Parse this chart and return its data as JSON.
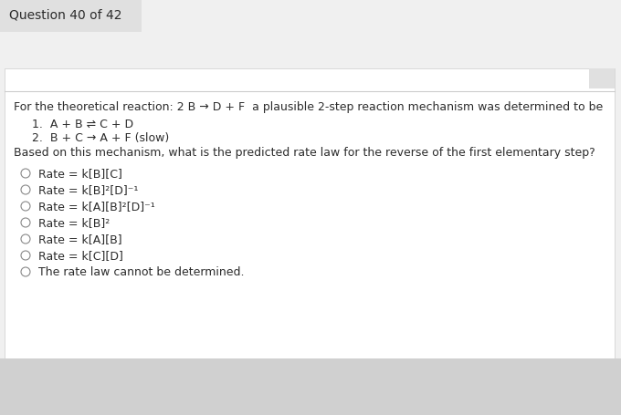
{
  "title": "Question 40 of 42",
  "bg_color": "#f0f0f0",
  "panel_color": "#ffffff",
  "header_bg": "#e0e0e0",
  "intro_line": "For the theoretical reaction: 2 B → D + F  a plausible 2-step reaction mechanism was determined to be",
  "step1": "1.  A + B ⇌ C + D",
  "step2": "2.  B + C → A + F (slow)",
  "question": "Based on this mechanism, what is the predicted rate law for the reverse of the first elementary step?",
  "options": [
    "Rate = k[B][C]",
    "Rate = k[B]²[D]⁻¹",
    "Rate = k[A][B]²[D]⁻¹",
    "Rate = k[B]²",
    "Rate = k[A][B]",
    "Rate = k[C][D]",
    "The rate law cannot be determined."
  ],
  "title_fontsize": 10,
  "body_fontsize": 9,
  "option_fontsize": 9,
  "text_color": "#2c2c2c",
  "gray_color": "#888888"
}
